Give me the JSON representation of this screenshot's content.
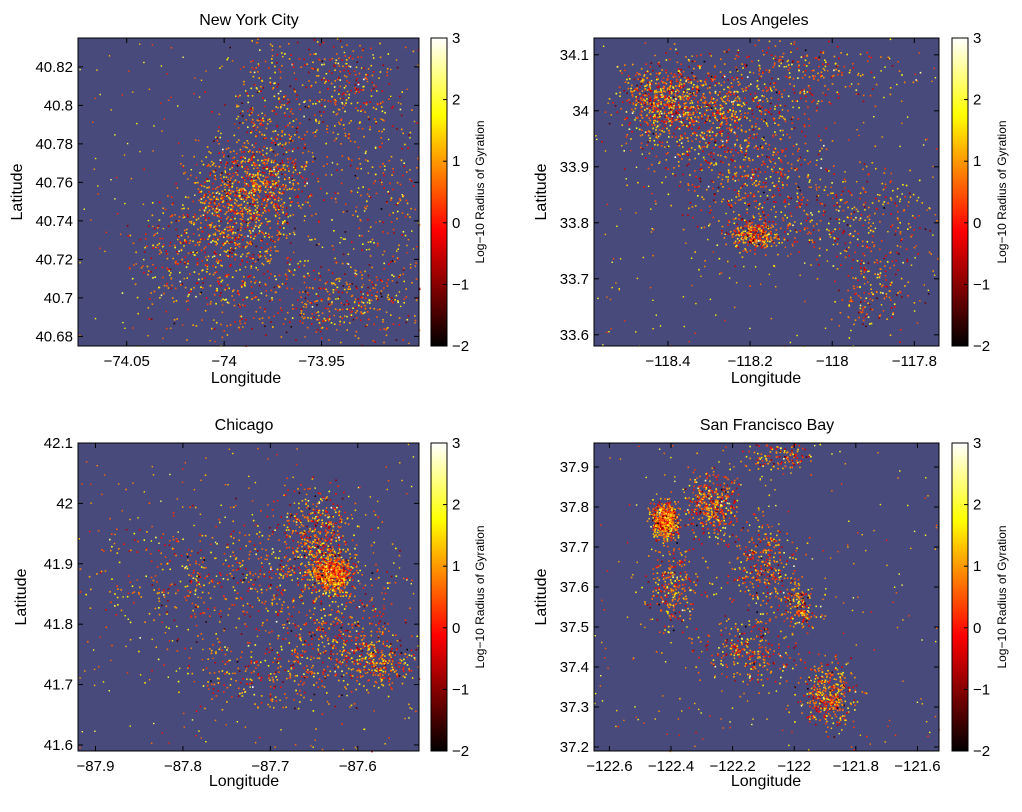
{
  "figure": {
    "layout": "2x2 grid"
  },
  "chart_data": [
    {
      "type": "scatter",
      "title": "New York City",
      "xlabel": "Longitude",
      "ylabel": "Latitude",
      "xlim": [
        -74.075,
        -73.9
      ],
      "ylim": [
        40.675,
        40.835
      ],
      "xticks": [
        -74.05,
        -74,
        -73.95
      ],
      "xtick_labels": [
        "−74.05",
        "−74",
        "−73.95"
      ],
      "yticks": [
        40.68,
        40.7,
        40.72,
        40.74,
        40.76,
        40.78,
        40.8,
        40.82
      ],
      "ytick_labels": [
        "40.68",
        "40.7",
        "40.72",
        "40.74",
        "40.76",
        "40.78",
        "40.8",
        "40.82"
      ],
      "background_color": "#484a7c",
      "colorbar": {
        "label": "Log−10 Radius of Gyration",
        "range": [
          -2,
          3
        ],
        "ticks": [
          -2,
          -1,
          0,
          1,
          2,
          3
        ],
        "tick_labels": [
          "−2",
          "−1",
          "0",
          "1",
          "2",
          "3"
        ],
        "colormap": "hot"
      },
      "point_density_centers": [
        {
          "x": -73.988,
          "y": 40.755,
          "spread_x": 0.014,
          "spread_y": 0.013,
          "weight": 5
        },
        {
          "x": -73.975,
          "y": 40.78,
          "spread_x": 0.012,
          "spread_y": 0.03,
          "weight": 3
        },
        {
          "x": -74.0,
          "y": 40.725,
          "spread_x": 0.015,
          "spread_y": 0.018,
          "weight": 3
        },
        {
          "x": -73.94,
          "y": 40.81,
          "spread_x": 0.015,
          "spread_y": 0.015,
          "weight": 2
        },
        {
          "x": -73.94,
          "y": 40.7,
          "spread_x": 0.03,
          "spread_y": 0.012,
          "weight": 3
        },
        {
          "x": -73.92,
          "y": 40.75,
          "spread_x": 0.015,
          "spread_y": 0.03,
          "weight": 1.5
        },
        {
          "x": -74.03,
          "y": 40.725,
          "spread_x": 0.01,
          "spread_y": 0.015,
          "weight": 1
        }
      ]
    },
    {
      "type": "scatter",
      "title": "Los Angeles",
      "xlabel": "Longitude",
      "ylabel": "Latitude",
      "xlim": [
        -118.58,
        -117.74
      ],
      "ylim": [
        33.58,
        34.13
      ],
      "xticks": [
        -118.4,
        -118.2,
        -118,
        -117.8
      ],
      "xtick_labels": [
        "−118.4",
        "−118.2",
        "−118",
        "−117.8"
      ],
      "yticks": [
        33.6,
        33.7,
        33.8,
        33.9,
        34,
        34.1
      ],
      "ytick_labels": [
        "33.6",
        "33.7",
        "33.8",
        "33.9",
        "34",
        "34.1"
      ],
      "background_color": "#484a7c",
      "colorbar": {
        "label": "Log−10 Radius of Gyration",
        "range": [
          -2,
          3
        ],
        "ticks": [
          -2,
          -1,
          0,
          1,
          2,
          3
        ],
        "tick_labels": [
          "−2",
          "−1",
          "0",
          "1",
          "2",
          "3"
        ],
        "colormap": "hot"
      },
      "point_density_centers": [
        {
          "x": -118.3,
          "y": 34.0,
          "spread_x": 0.1,
          "spread_y": 0.05,
          "weight": 5
        },
        {
          "x": -118.42,
          "y": 34.02,
          "spread_x": 0.05,
          "spread_y": 0.03,
          "weight": 3
        },
        {
          "x": -118.2,
          "y": 33.88,
          "spread_x": 0.1,
          "spread_y": 0.06,
          "weight": 3
        },
        {
          "x": -118.19,
          "y": 33.78,
          "spread_x": 0.03,
          "spread_y": 0.015,
          "weight": 2
        },
        {
          "x": -117.95,
          "y": 33.8,
          "spread_x": 0.1,
          "spread_y": 0.05,
          "weight": 2
        },
        {
          "x": -118.05,
          "y": 34.07,
          "spread_x": 0.1,
          "spread_y": 0.03,
          "weight": 1.5
        },
        {
          "x": -117.9,
          "y": 33.68,
          "spread_x": 0.05,
          "spread_y": 0.04,
          "weight": 1
        }
      ]
    },
    {
      "type": "scatter",
      "title": "Chicago",
      "xlabel": "Longitude",
      "ylabel": "Latitude",
      "xlim": [
        -87.92,
        -87.53
      ],
      "ylim": [
        41.59,
        42.1
      ],
      "xticks": [
        -87.9,
        -87.8,
        -87.7,
        -87.6
      ],
      "xtick_labels": [
        "−87.9",
        "−87.8",
        "−87.7",
        "−87.6"
      ],
      "yticks": [
        41.6,
        41.7,
        41.8,
        41.9,
        42,
        42.1
      ],
      "ytick_labels": [
        "41.6",
        "41.7",
        "41.8",
        "41.9",
        "42",
        "42.1"
      ],
      "background_color": "#484a7c",
      "colorbar": {
        "label": "Log−10 Radius of Gyration",
        "range": [
          -2,
          3
        ],
        "ticks": [
          -2,
          -1,
          0,
          1,
          2,
          3
        ],
        "tick_labels": [
          "−2",
          "−1",
          "0",
          "1",
          "2",
          "3"
        ],
        "colormap": "hot"
      },
      "point_density_centers": [
        {
          "x": -87.63,
          "y": 41.885,
          "spread_x": 0.012,
          "spread_y": 0.015,
          "weight": 5
        },
        {
          "x": -87.65,
          "y": 41.95,
          "spread_x": 0.02,
          "spread_y": 0.04,
          "weight": 3
        },
        {
          "x": -87.7,
          "y": 41.88,
          "spread_x": 0.08,
          "spread_y": 0.05,
          "weight": 3
        },
        {
          "x": -87.62,
          "y": 41.77,
          "spread_x": 0.04,
          "spread_y": 0.05,
          "weight": 3
        },
        {
          "x": -87.57,
          "y": 41.74,
          "spread_x": 0.02,
          "spread_y": 0.02,
          "weight": 1.5
        },
        {
          "x": -87.8,
          "y": 41.88,
          "spread_x": 0.06,
          "spread_y": 0.06,
          "weight": 1.5
        },
        {
          "x": -87.72,
          "y": 41.72,
          "spread_x": 0.05,
          "spread_y": 0.03,
          "weight": 1.5
        }
      ]
    },
    {
      "type": "scatter",
      "title": "San Francisco Bay",
      "xlabel": "Longitude",
      "ylabel": "Latitude",
      "xlim": [
        -122.65,
        -121.53
      ],
      "ylim": [
        37.19,
        37.96
      ],
      "xticks": [
        -122.6,
        -122.4,
        -122.2,
        -122,
        -121.8,
        -121.6
      ],
      "xtick_labels": [
        "−122.6",
        "−122.4",
        "−122.2",
        "−122",
        "−121.8",
        "−121.6"
      ],
      "yticks": [
        37.2,
        37.3,
        37.4,
        37.5,
        37.6,
        37.7,
        37.8,
        37.9
      ],
      "ytick_labels": [
        "37.2",
        "37.3",
        "37.4",
        "37.5",
        "37.6",
        "37.7",
        "37.8",
        "37.9"
      ],
      "background_color": "#484a7c",
      "colorbar": {
        "label": "Log−10 Radius of Gyration",
        "range": [
          -2,
          3
        ],
        "ticks": [
          -2,
          -1,
          0,
          1,
          2,
          3
        ],
        "tick_labels": [
          "−2",
          "−1",
          "0",
          "1",
          "2",
          "3"
        ],
        "colormap": "hot"
      },
      "point_density_centers": [
        {
          "x": -122.42,
          "y": 37.77,
          "spread_x": 0.02,
          "spread_y": 0.02,
          "weight": 5
        },
        {
          "x": -122.27,
          "y": 37.81,
          "spread_x": 0.04,
          "spread_y": 0.04,
          "weight": 3
        },
        {
          "x": -122.1,
          "y": 37.65,
          "spread_x": 0.06,
          "spread_y": 0.06,
          "weight": 2.5
        },
        {
          "x": -122.4,
          "y": 37.6,
          "spread_x": 0.04,
          "spread_y": 0.06,
          "weight": 2
        },
        {
          "x": -122.15,
          "y": 37.44,
          "spread_x": 0.08,
          "spread_y": 0.04,
          "weight": 2
        },
        {
          "x": -121.89,
          "y": 37.33,
          "spread_x": 0.04,
          "spread_y": 0.04,
          "weight": 3
        },
        {
          "x": -121.98,
          "y": 37.55,
          "spread_x": 0.03,
          "spread_y": 0.03,
          "weight": 1.2
        },
        {
          "x": -122.05,
          "y": 37.93,
          "spread_x": 0.05,
          "spread_y": 0.02,
          "weight": 1
        }
      ]
    }
  ]
}
